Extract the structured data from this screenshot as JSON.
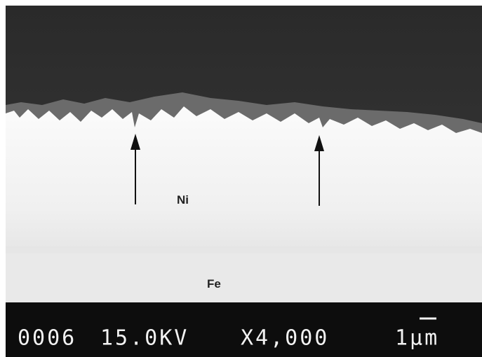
{
  "image": {
    "labels": [
      "Ni",
      "Fe"
    ]
  },
  "footer": {
    "number": "0006",
    "voltage": "15.0KV",
    "magnification": "X4,000",
    "scale": "1μm"
  }
}
